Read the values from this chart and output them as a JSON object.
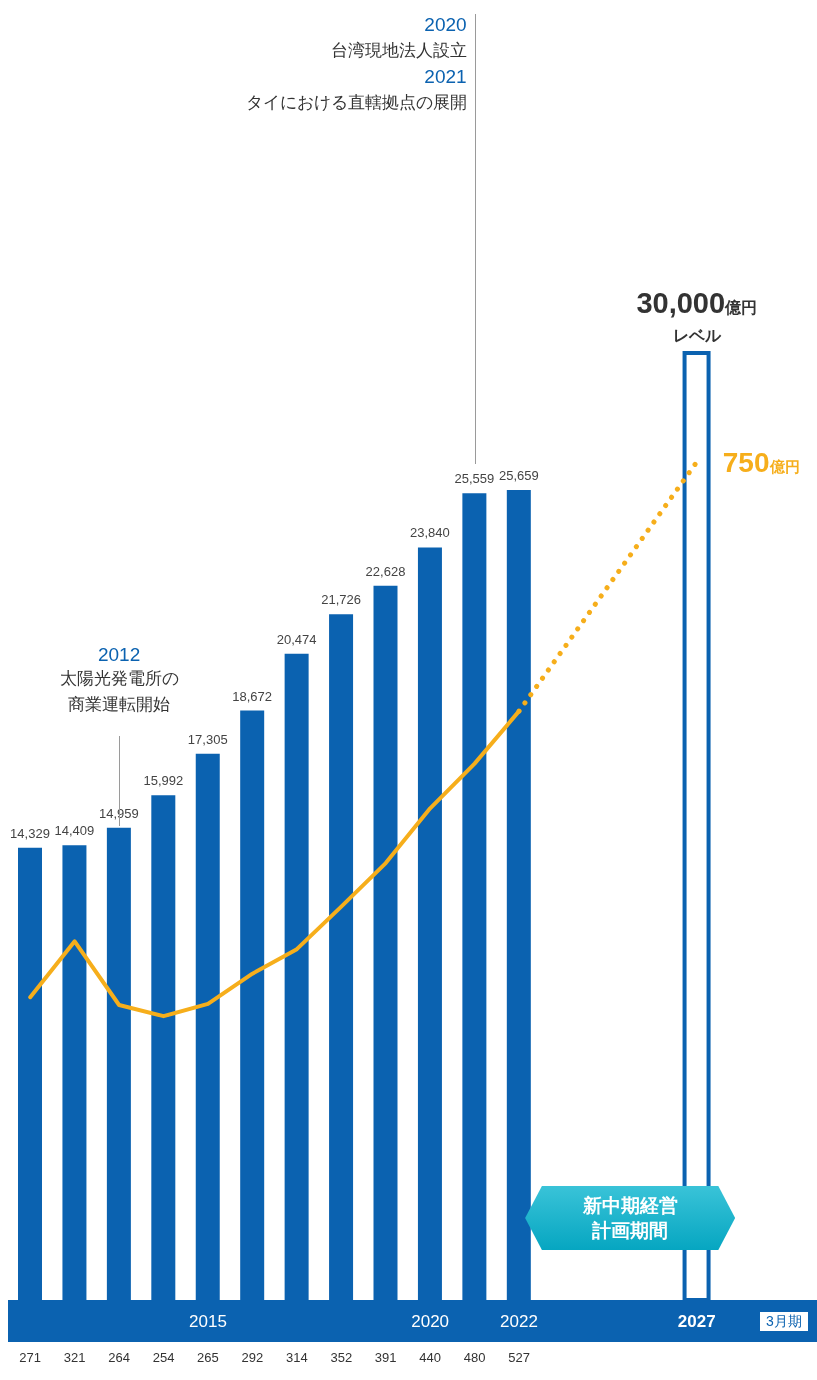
{
  "chart_data": {
    "type": "bar",
    "categories": [
      null,
      null,
      null,
      null,
      "2015",
      null,
      null,
      null,
      null,
      "2020",
      null,
      "2022",
      null,
      null,
      null,
      "2027"
    ],
    "series": [
      {
        "color": "#0b62b0",
        "values": [
          14329,
          14409,
          14959,
          15992,
          17305,
          18672,
          20474,
          21726,
          22628,
          23840,
          25559,
          25659,
          null,
          null,
          null,
          null
        ],
        "value_labels": [
          "14,329",
          "14,409",
          "14,959",
          "15,992",
          "17,305",
          "18,672",
          "20,474",
          "21,726",
          "22,628",
          "23,840",
          "25,559",
          "25,659",
          null,
          null,
          null,
          null
        ]
      },
      {
        "color": "#0b62b0",
        "values": [
          null,
          null,
          null,
          null,
          null,
          null,
          null,
          null,
          null,
          null,
          null,
          null,
          null,
          null,
          null,
          30000
        ],
        "value_labels": [
          null,
          null,
          null,
          null,
          null,
          null,
          null,
          null,
          null,
          null,
          null,
          null,
          null,
          null,
          null,
          "30,000億円レベル"
        ]
      },
      {
        "type": "line",
        "axis": "y2",
        "color": "#f6ae1b",
        "values": [
          271,
          321,
          264,
          254,
          265,
          292,
          314,
          352,
          391,
          440,
          480,
          527,
          null,
          null,
          null,
          null
        ]
      },
      {
        "type": "line",
        "axis": "y2",
        "color": "#f6ae1b",
        "line_style": "dotted",
        "values": [
          null,
          null,
          null,
          null,
          null,
          null,
          null,
          null,
          null,
          null,
          null,
          527,
          null,
          null,
          null,
          750
        ],
        "value_labels": [
          null,
          null,
          null,
          null,
          null,
          null,
          null,
          null,
          null,
          null,
          null,
          null,
          null,
          null,
          null,
          "750億円"
        ]
      }
    ],
    "tick_labels": "x",
    "data_labels": true,
    "xlabel": "3月期",
    "annotations": [
      "2012",
      "太陽光発電所の商業運転開始",
      "2020",
      "台湾現地法人設立",
      "2021",
      "タイにおける直轄拠点の展開",
      "新中期経営計画期間"
    ]
  }
}
